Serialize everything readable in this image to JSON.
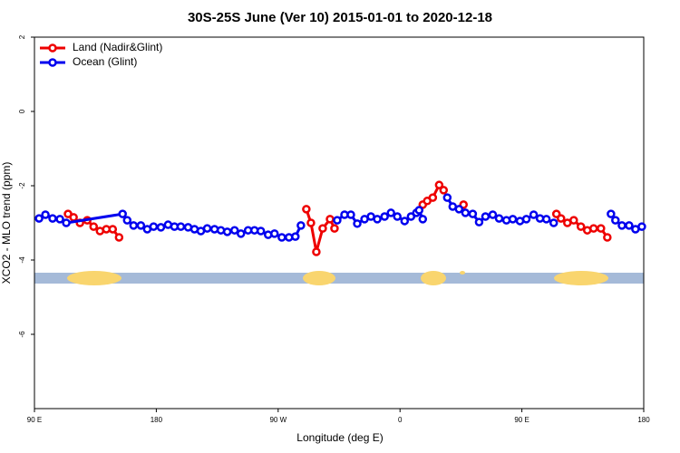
{
  "chart_data": {
    "type": "line",
    "title": "30S-25S June (Ver 10)   2015-01-01 to 2020-12-18",
    "xlabel": "Longitude (deg E)",
    "ylabel": "XCO2 - MLO trend (ppm)",
    "xlim": [
      90,
      540
    ],
    "ylim": [
      -8,
      2
    ],
    "xticks": [
      {
        "value": 90,
        "label": "90 E"
      },
      180,
      {
        "value": 270,
        "label": "90 W"
      },
      {
        "value": 360,
        "label": "0"
      },
      {
        "value": 450,
        "label": "90 E"
      },
      {
        "value": 540,
        "label": "180"
      }
    ],
    "yticks": [
      2,
      0,
      -2,
      -4,
      -6
    ],
    "legend": "top-left",
    "series": [
      {
        "name": "Land (Nadir&Glint)",
        "color": "#ee0000",
        "x": [
          114.8,
          118.9,
          123.6,
          129,
          133.7,
          138.4,
          143.1,
          147.8,
          152.5,
          null,
          290.8,
          294.2,
          298.2,
          302.9,
          308.3,
          311.6,
          null,
          376.8,
          380.1,
          384.2,
          388.9,
          392.2,
          null,
          406.9,
          null,
          475.5,
          478.9,
          483.6,
          488.3,
          493.6,
          498.3,
          503,
          508.4,
          513.1
        ],
        "values": [
          -2.76,
          -2.85,
          -3.0,
          -2.93,
          -3.1,
          -3.22,
          -3.17,
          -3.17,
          -3.39,
          null,
          -2.63,
          -3.0,
          -3.78,
          -3.15,
          -2.9,
          -3.15,
          null,
          -2.51,
          -2.41,
          -2.32,
          -1.98,
          -2.12,
          null,
          -2.51,
          null,
          -2.76,
          -2.88,
          -3.0,
          -2.93,
          -3.1,
          -3.2,
          -3.15,
          -3.15,
          -3.39
        ]
      },
      {
        "name": "Ocean (Glint)",
        "color": "#0000ee",
        "x": [
          93.4,
          98.1,
          103.4,
          108.8,
          113.5,
          155.1,
          158.5,
          163.2,
          168.6,
          173.3,
          178,
          183.4,
          188.7,
          193.4,
          198.1,
          203.5,
          208.2,
          212.9,
          217.6,
          223,
          227.7,
          232.4,
          237.8,
          242.5,
          247.8,
          252.5,
          257.2,
          262.6,
          267.3,
          272.7,
          278,
          282.7,
          286.8,
          null,
          313.6,
          319,
          323.7,
          328.4,
          333.8,
          338.5,
          343.2,
          348.6,
          353.3,
          358,
          363.4,
          368.1,
          372.1,
          374.1,
          376.8,
          null,
          394.9,
          398.9,
          403.6,
          408.3,
          413.7,
          418.4,
          423.1,
          428.5,
          433.2,
          438.6,
          443.3,
          448.6,
          453.3,
          458.7,
          463.4,
          468.1,
          473.5,
          null,
          515.8,
          519.1,
          523.9,
          529.2,
          533.9,
          538.6
        ],
        "values": [
          -2.88,
          -2.78,
          -2.88,
          -2.9,
          -3.0,
          -2.76,
          -2.93,
          -3.07,
          -3.07,
          -3.17,
          -3.1,
          -3.12,
          -3.05,
          -3.1,
          -3.1,
          -3.12,
          -3.17,
          -3.22,
          -3.15,
          -3.17,
          -3.2,
          -3.24,
          -3.2,
          -3.29,
          -3.2,
          -3.2,
          -3.22,
          -3.32,
          -3.29,
          -3.39,
          -3.39,
          -3.37,
          -3.07,
          null,
          -2.93,
          -2.78,
          -2.78,
          -3.02,
          -2.9,
          -2.83,
          -2.9,
          -2.83,
          -2.73,
          -2.83,
          -2.95,
          -2.83,
          -2.73,
          -2.66,
          -2.9,
          null,
          -2.32,
          -2.56,
          -2.63,
          -2.73,
          -2.76,
          -2.98,
          -2.83,
          -2.78,
          -2.88,
          -2.93,
          -2.9,
          -2.95,
          -2.9,
          -2.78,
          -2.88,
          -2.9,
          -3.0,
          null,
          -2.76,
          -2.93,
          -3.07,
          -3.07,
          -3.17,
          -3.1
        ]
      }
    ]
  }
}
